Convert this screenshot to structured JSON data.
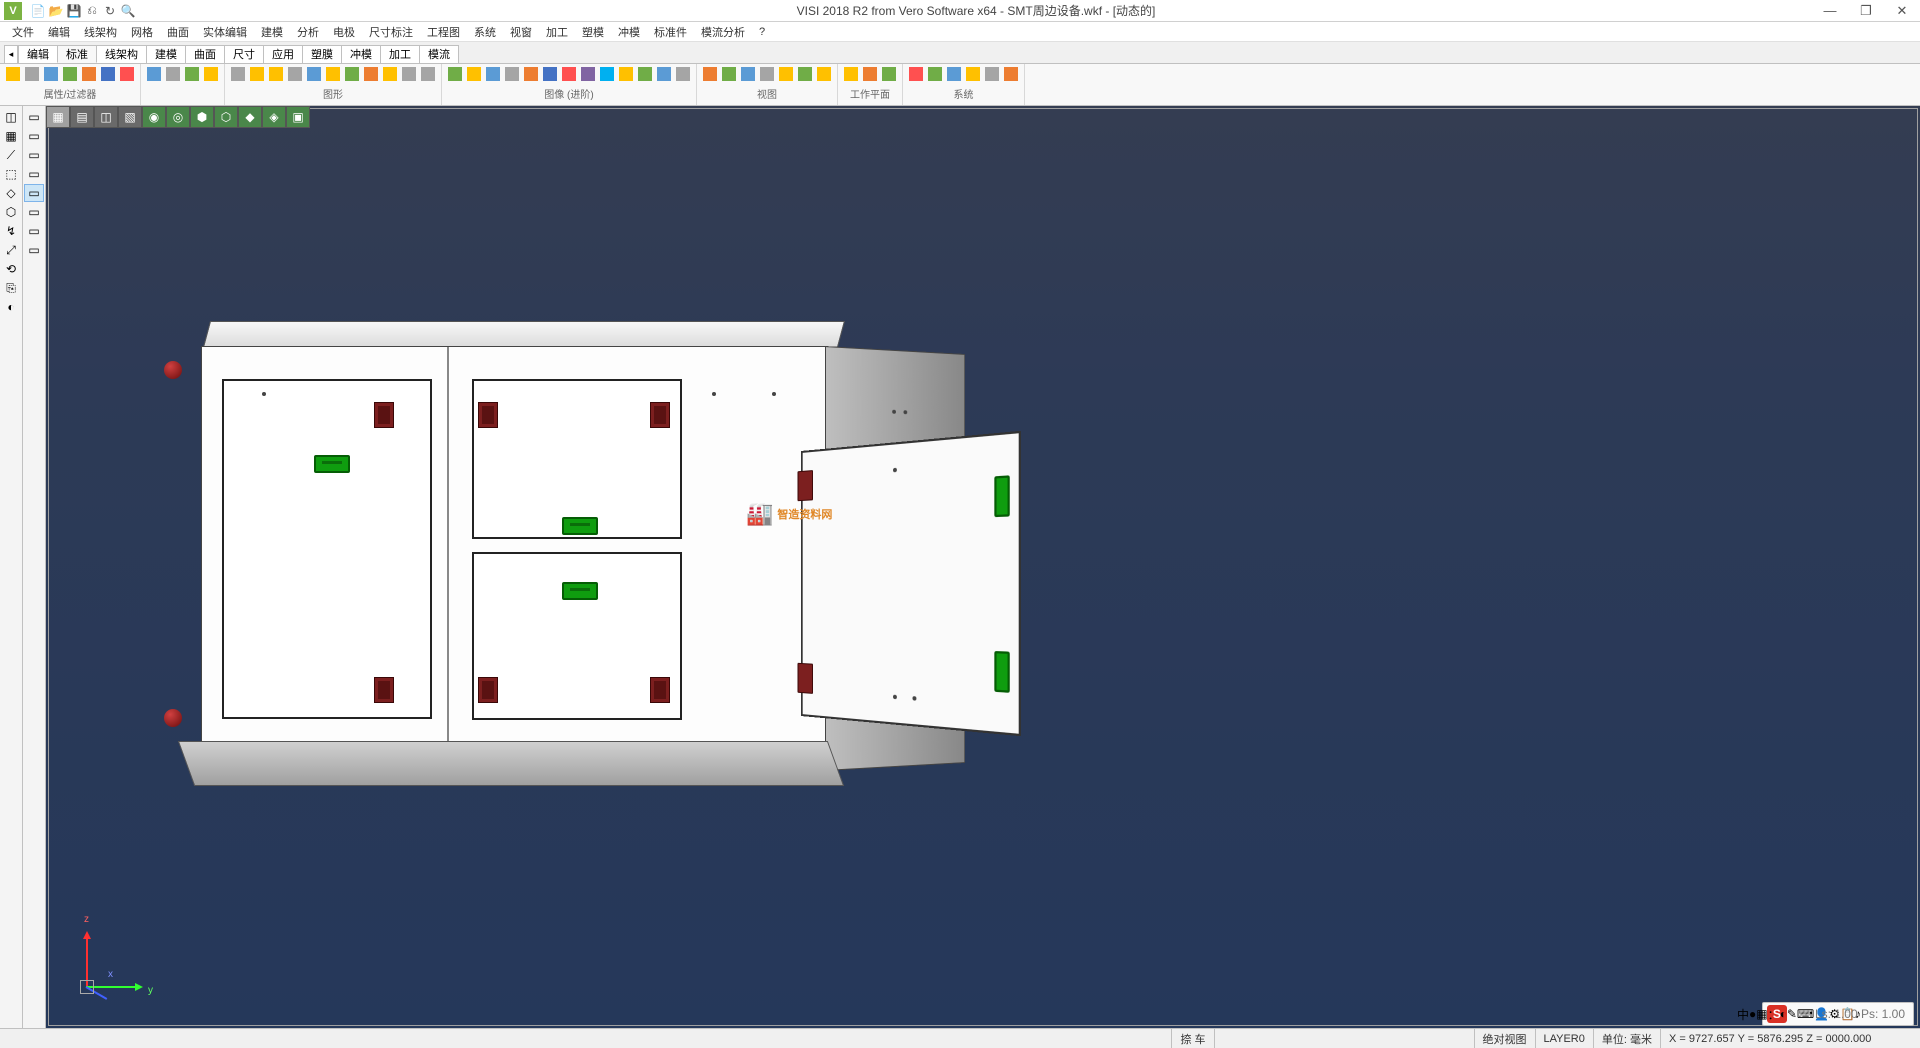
{
  "app": {
    "title": "VISI 2018 R2 from Vero Software x64 - SMT周边设备.wkf - [动态的]",
    "logo_letter": "V"
  },
  "quick_access": [
    "📄",
    "📂",
    "💾",
    "⎌",
    "↻",
    "🔍"
  ],
  "window_controls": {
    "min": "—",
    "max": "❐",
    "close": "✕"
  },
  "menubar": [
    "文件",
    "编辑",
    "线架构",
    "网格",
    "曲面",
    "实体编辑",
    "建模",
    "分析",
    "电极",
    "尺寸标注",
    "工程图",
    "系统",
    "视窗",
    "加工",
    "塑模",
    "冲模",
    "标准件",
    "模流分析",
    "?"
  ],
  "tabs": {
    "pre": "◂",
    "items": [
      "编辑",
      "标准",
      "线架构",
      "建模",
      "曲面",
      "尺寸",
      "应用",
      "塑膜",
      "冲模",
      "加工",
      "模流"
    ],
    "active_index": 1
  },
  "ribbon_groups": [
    {
      "label": "属性/过滤器",
      "colors": [
        "c3",
        "c5",
        "c1",
        "c2",
        "c4",
        "c6",
        "c7"
      ]
    },
    {
      "label": "",
      "colors": [
        "c1",
        "c5",
        "c2",
        "c3"
      ]
    },
    {
      "label": "图形",
      "colors": [
        "c5",
        "c3",
        "c3",
        "c5",
        "c1",
        "c3",
        "c2",
        "c4",
        "c3",
        "c5",
        "c5"
      ]
    },
    {
      "label": "图像 (进阶)",
      "colors": [
        "c2",
        "c3",
        "c1",
        "c5",
        "c4",
        "c6",
        "c7",
        "c9",
        "c10",
        "c3",
        "c2",
        "c1",
        "c5"
      ]
    },
    {
      "label": "视图",
      "colors": [
        "c4",
        "c2",
        "c1",
        "c5",
        "c3",
        "c2",
        "c3"
      ]
    },
    {
      "label": "工作平面",
      "colors": [
        "c3",
        "c4",
        "c2"
      ]
    },
    {
      "label": "系统",
      "colors": [
        "c7",
        "c2",
        "c1",
        "c3",
        "c5",
        "c4"
      ]
    }
  ],
  "sidetools_left": [
    "◫",
    "▦",
    "⟋",
    "⬚",
    "◇",
    "⬡",
    "↯",
    "⤢",
    "⟲",
    "⎘",
    "◐"
  ],
  "sidetools_left2": [
    "▭",
    "▭",
    "▭",
    "▭",
    "▭",
    "▭",
    "▭",
    "▭"
  ],
  "viewmode": [
    {
      "cls": "light",
      "glyph": "▦"
    },
    {
      "cls": "",
      "glyph": "▤"
    },
    {
      "cls": "",
      "glyph": "◫"
    },
    {
      "cls": "",
      "glyph": "▧"
    },
    {
      "cls": "green",
      "glyph": "◉"
    },
    {
      "cls": "green",
      "glyph": "◎"
    },
    {
      "cls": "green",
      "glyph": "⬢"
    },
    {
      "cls": "green",
      "glyph": "⬡"
    },
    {
      "cls": "green",
      "glyph": "◆"
    },
    {
      "cls": "green",
      "glyph": "◈"
    },
    {
      "cls": "green",
      "glyph": "▣"
    }
  ],
  "axes": {
    "x": "x",
    "y": "y",
    "z": "z"
  },
  "watermark": {
    "text": "智造资料网",
    "icon": "🏭"
  },
  "bottom_pill": {
    "ime": "S",
    "items": [
      "中",
      "●",
      "▦",
      "：",
      "◐",
      "✎",
      "⌨",
      "👤",
      "⚙",
      "📋",
      "♪"
    ],
    "extra": "Ls: 1.00 Ps: 1.00"
  },
  "statusbar": {
    "hint": "捺 车",
    "view_label1": "绝对视图",
    "layer": "LAYER0",
    "unit_label": "单位:",
    "unit_value": "毫米",
    "coords": "X = 9727.657 Y = 5876.295 Z = 0000.000"
  },
  "colors": {
    "viewport_grad_top": "#343d52",
    "viewport_grad_bot": "#25385a",
    "hinge": "#7c1f1f",
    "handle": "#0f9d0f",
    "knob": "#8a1414",
    "watermark": "#e08828"
  }
}
